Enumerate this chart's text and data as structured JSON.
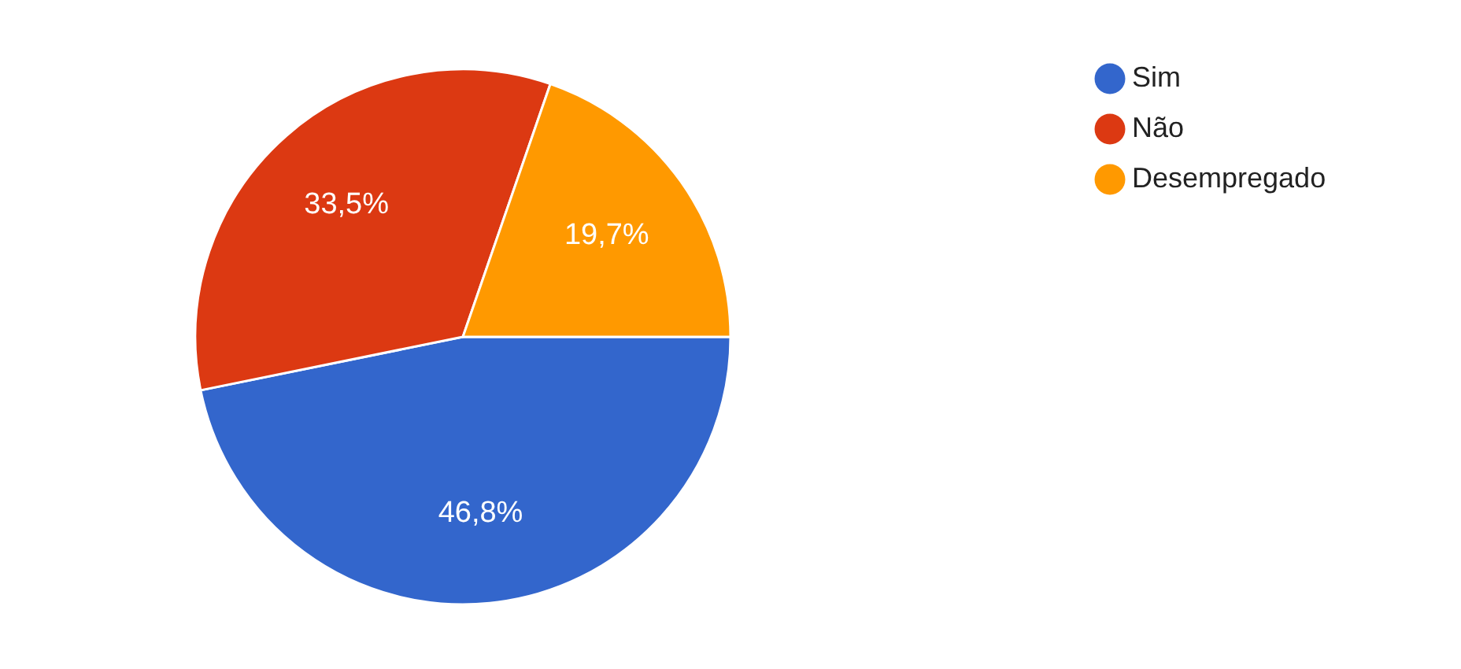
{
  "chart_data": {
    "type": "pie",
    "categories": [
      "Sim",
      "Não",
      "Desempregado"
    ],
    "values": [
      46.8,
      33.5,
      19.7
    ],
    "colors": [
      "#3366cc",
      "#dc3912",
      "#ff9900"
    ],
    "value_labels": [
      "46,8%",
      "33,5%",
      "19,7%"
    ],
    "legend": "right"
  }
}
